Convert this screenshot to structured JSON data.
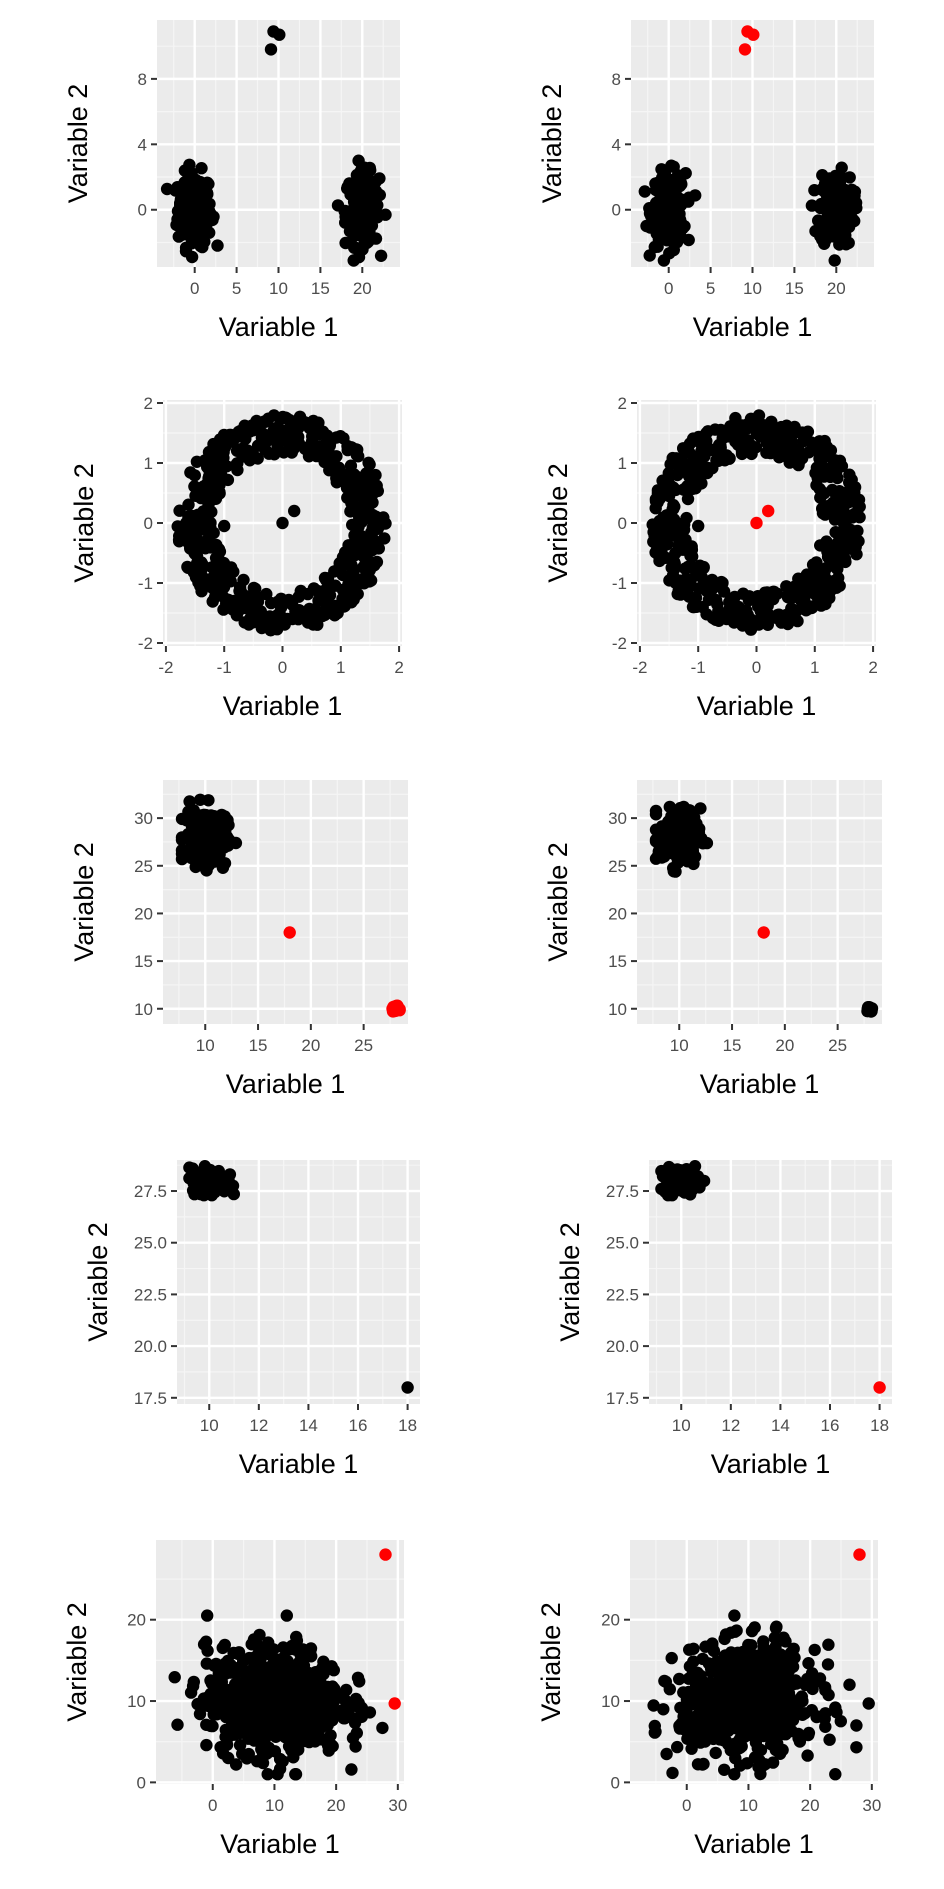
{
  "colors": {
    "panel_bg": "#ebebeb",
    "grid_major": "#ffffff",
    "grid_minor": "#f5f5f5",
    "inlier": "#000000",
    "outlier": "#ff0000"
  },
  "chart_data": [
    {
      "type": "scatter",
      "xlabel": "Variable 1",
      "ylabel": "Variable 2",
      "xlim": [
        -4.5,
        24.5
      ],
      "ylim": [
        -3.5,
        11.6
      ],
      "xticks": [
        0,
        5,
        10,
        15,
        20
      ],
      "xtick_labels": [
        "0",
        "5",
        "10",
        "15",
        "20"
      ],
      "yticks": [
        0,
        4,
        8
      ],
      "ytick_labels": [
        "0",
        "4",
        "8"
      ],
      "clusters": [
        {
          "kind": "cloud",
          "cx": 0,
          "cy": 0,
          "sx": 1.0,
          "sy": 1.1,
          "xr": [
            -3.3,
            3.2
          ],
          "yr": [
            -3.1,
            3.0
          ],
          "n": 200,
          "color": "inlier"
        },
        {
          "kind": "cloud",
          "cx": 20,
          "cy": 0,
          "sx": 1.0,
          "sy": 1.1,
          "xr": [
            16.9,
            23.0
          ],
          "yr": [
            -3.1,
            3.0
          ],
          "n": 200,
          "color": "inlier"
        }
      ],
      "points": [
        {
          "x": 9.4,
          "y": 10.9,
          "color": "inlier"
        },
        {
          "x": 10.1,
          "y": 10.7,
          "color": "inlier"
        },
        {
          "x": 9.1,
          "y": 9.8,
          "color": "inlier"
        }
      ]
    },
    {
      "type": "scatter",
      "xlabel": "Variable 1",
      "ylabel": "Variable 2",
      "xlim": [
        -4.5,
        24.5
      ],
      "ylim": [
        -3.5,
        11.6
      ],
      "xticks": [
        0,
        5,
        10,
        15,
        20
      ],
      "xtick_labels": [
        "0",
        "5",
        "10",
        "15",
        "20"
      ],
      "yticks": [
        0,
        4,
        8
      ],
      "ytick_labels": [
        "0",
        "4",
        "8"
      ],
      "clusters": [
        {
          "kind": "cloud",
          "cx": 0,
          "cy": 0,
          "sx": 1.0,
          "sy": 1.1,
          "xr": [
            -3.3,
            3.2
          ],
          "yr": [
            -3.1,
            3.0
          ],
          "n": 200,
          "color": "inlier"
        },
        {
          "kind": "cloud",
          "cx": 20,
          "cy": 0,
          "sx": 1.0,
          "sy": 1.1,
          "xr": [
            16.9,
            23.0
          ],
          "yr": [
            -3.1,
            3.0
          ],
          "n": 200,
          "color": "inlier"
        }
      ],
      "points": [
        {
          "x": 9.4,
          "y": 10.9,
          "color": "outlier"
        },
        {
          "x": 10.1,
          "y": 10.7,
          "color": "outlier"
        },
        {
          "x": 9.1,
          "y": 9.8,
          "color": "outlier"
        }
      ]
    },
    {
      "type": "scatter",
      "xlabel": "Variable 1",
      "ylabel": "Variable 2",
      "xlim": [
        -2.05,
        2.05
      ],
      "ylim": [
        -2.05,
        2.05
      ],
      "xticks": [
        -2,
        -1,
        0,
        1,
        2
      ],
      "xtick_labels": [
        "-2",
        "-1",
        "0",
        "1",
        "2"
      ],
      "yticks": [
        -2,
        -1,
        0,
        1,
        2
      ],
      "ytick_labels": [
        "-2",
        "-1",
        "0",
        "1",
        "2"
      ],
      "clusters": [
        {
          "kind": "ring",
          "cx": 0,
          "cy": 0,
          "r_in": 1.15,
          "r_out": 1.8,
          "n": 520,
          "color": "inlier"
        }
      ],
      "points": [
        {
          "x": 0.0,
          "y": 0.0,
          "color": "inlier"
        },
        {
          "x": 0.2,
          "y": 0.2,
          "color": "inlier"
        },
        {
          "x": 1.05,
          "y": 0.75,
          "color": "inlier"
        },
        {
          "x": 1.2,
          "y": -0.75,
          "color": "inlier"
        },
        {
          "x": -1.0,
          "y": -0.05,
          "color": "inlier"
        }
      ]
    },
    {
      "type": "scatter",
      "xlabel": "Variable 1",
      "ylabel": "Variable 2",
      "xlim": [
        -2.05,
        2.05
      ],
      "ylim": [
        -2.05,
        2.05
      ],
      "xticks": [
        -2,
        -1,
        0,
        1,
        2
      ],
      "xtick_labels": [
        "-2",
        "-1",
        "0",
        "1",
        "2"
      ],
      "yticks": [
        -2,
        -1,
        0,
        1,
        2
      ],
      "ytick_labels": [
        "-2",
        "-1",
        "0",
        "1",
        "2"
      ],
      "clusters": [
        {
          "kind": "ring",
          "cx": 0,
          "cy": 0,
          "r_in": 1.15,
          "r_out": 1.8,
          "n": 520,
          "color": "inlier"
        }
      ],
      "points": [
        {
          "x": 0.0,
          "y": 0.0,
          "color": "outlier"
        },
        {
          "x": 0.2,
          "y": 0.2,
          "color": "outlier"
        },
        {
          "x": 1.05,
          "y": 0.75,
          "color": "inlier"
        },
        {
          "x": 1.2,
          "y": -0.75,
          "color": "inlier"
        },
        {
          "x": -1.0,
          "y": -0.05,
          "color": "inlier"
        }
      ]
    },
    {
      "type": "scatter",
      "xlabel": "Variable 1",
      "ylabel": "Variable 2",
      "xlim": [
        6.0,
        29.2
      ],
      "ylim": [
        8.4,
        34.0
      ],
      "xticks": [
        10,
        15,
        20,
        25
      ],
      "xtick_labels": [
        "10",
        "15",
        "20",
        "25"
      ],
      "yticks": [
        10,
        15,
        20,
        25,
        30
      ],
      "ytick_labels": [
        "10",
        "15",
        "20",
        "25",
        "30"
      ],
      "clusters": [
        {
          "kind": "cloud",
          "cx": 10,
          "cy": 28,
          "sx": 1.0,
          "sy": 1.5,
          "xr": [
            7.8,
            12.9
          ],
          "yr": [
            23.8,
            33.2
          ],
          "n": 180,
          "color": "inlier"
        },
        {
          "kind": "cloud",
          "cx": 28,
          "cy": 10,
          "sx": 0.15,
          "sy": 0.15,
          "xr": [
            27.6,
            28.4
          ],
          "yr": [
            9.6,
            10.4
          ],
          "n": 30,
          "color": "outlier"
        }
      ],
      "points": [
        {
          "x": 18,
          "y": 18,
          "color": "outlier"
        }
      ]
    },
    {
      "type": "scatter",
      "xlabel": "Variable 1",
      "ylabel": "Variable 2",
      "xlim": [
        6.0,
        29.2
      ],
      "ylim": [
        8.4,
        34.0
      ],
      "xticks": [
        10,
        15,
        20,
        25
      ],
      "xtick_labels": [
        "10",
        "15",
        "20",
        "25"
      ],
      "yticks": [
        10,
        15,
        20,
        25,
        30
      ],
      "ytick_labels": [
        "10",
        "15",
        "20",
        "25",
        "30"
      ],
      "clusters": [
        {
          "kind": "cloud",
          "cx": 10,
          "cy": 28,
          "sx": 1.0,
          "sy": 1.5,
          "xr": [
            7.8,
            12.9
          ],
          "yr": [
            23.8,
            33.2
          ],
          "n": 180,
          "color": "inlier"
        },
        {
          "kind": "cloud",
          "cx": 28,
          "cy": 10,
          "sx": 0.15,
          "sy": 0.15,
          "xr": [
            27.6,
            28.4
          ],
          "yr": [
            9.6,
            10.4
          ],
          "n": 30,
          "color": "inlier"
        }
      ],
      "points": [
        {
          "x": 18,
          "y": 18,
          "color": "outlier"
        }
      ]
    },
    {
      "type": "scatter",
      "xlabel": "Variable 1",
      "ylabel": "Variable 2",
      "xlim": [
        8.7,
        18.5
      ],
      "ylim": [
        17.2,
        29.0
      ],
      "xticks": [
        10,
        12,
        14,
        16,
        18
      ],
      "xtick_labels": [
        "10",
        "12",
        "14",
        "16",
        "18"
      ],
      "yticks": [
        17.5,
        20.0,
        22.5,
        25.0,
        27.5
      ],
      "ytick_labels": [
        "17.5",
        "20.0",
        "22.5",
        "25.0",
        "27.5"
      ],
      "clusters": [
        {
          "kind": "cloud",
          "cx": 10.0,
          "cy": 28.0,
          "sx": 0.35,
          "sy": 0.3,
          "xr": [
            9.2,
            11.0
          ],
          "yr": [
            27.3,
            28.7
          ],
          "n": 150,
          "color": "inlier"
        }
      ],
      "points": [
        {
          "x": 18,
          "y": 18,
          "color": "inlier"
        }
      ]
    },
    {
      "type": "scatter",
      "xlabel": "Variable 1",
      "ylabel": "Variable 2",
      "xlim": [
        8.7,
        18.5
      ],
      "ylim": [
        17.2,
        29.0
      ],
      "xticks": [
        10,
        12,
        14,
        16,
        18
      ],
      "xtick_labels": [
        "10",
        "12",
        "14",
        "16",
        "18"
      ],
      "yticks": [
        17.5,
        20.0,
        22.5,
        25.0,
        27.5
      ],
      "ytick_labels": [
        "17.5",
        "20.0",
        "22.5",
        "25.0",
        "27.5"
      ],
      "clusters": [
        {
          "kind": "cloud",
          "cx": 10.0,
          "cy": 28.0,
          "sx": 0.35,
          "sy": 0.3,
          "xr": [
            9.2,
            11.0
          ],
          "yr": [
            27.3,
            28.7
          ],
          "n": 150,
          "color": "inlier"
        }
      ],
      "points": [
        {
          "x": 18,
          "y": 18,
          "color": "outlier"
        }
      ]
    },
    {
      "type": "scatter",
      "xlabel": "Variable 1",
      "ylabel": "Variable 2",
      "xlim": [
        -9.2,
        31.0
      ],
      "ylim": [
        -0.2,
        29.8
      ],
      "xticks": [
        0,
        10,
        20,
        30
      ],
      "xtick_labels": [
        "0",
        "10",
        "20",
        "30"
      ],
      "yticks": [
        0,
        10,
        20
      ],
      "ytick_labels": [
        "0",
        "10",
        "20"
      ],
      "clusters": [
        {
          "kind": "cloud",
          "cx": 10,
          "cy": 10,
          "sx": 5.5,
          "sy": 3.3,
          "xr": [
            -7.5,
            27.5
          ],
          "yr": [
            1.0,
            20.5
          ],
          "n": 700,
          "color": "inlier"
        }
      ],
      "points": [
        {
          "x": 28,
          "y": 28,
          "color": "outlier"
        },
        {
          "x": 29.5,
          "y": 9.7,
          "color": "outlier"
        }
      ]
    },
    {
      "type": "scatter",
      "xlabel": "Variable 1",
      "ylabel": "Variable 2",
      "xlim": [
        -9.2,
        31.0
      ],
      "ylim": [
        -0.2,
        29.8
      ],
      "xticks": [
        0,
        10,
        20,
        30
      ],
      "xtick_labels": [
        "0",
        "10",
        "20",
        "30"
      ],
      "yticks": [
        0,
        10,
        20
      ],
      "ytick_labels": [
        "0",
        "10",
        "20"
      ],
      "clusters": [
        {
          "kind": "cloud",
          "cx": 10,
          "cy": 10,
          "sx": 5.5,
          "sy": 3.3,
          "xr": [
            -7.5,
            27.5
          ],
          "yr": [
            1.0,
            20.5
          ],
          "n": 700,
          "color": "inlier"
        }
      ],
      "points": [
        {
          "x": 28,
          "y": 28,
          "color": "outlier"
        },
        {
          "x": 29.5,
          "y": 9.7,
          "color": "inlier"
        }
      ]
    }
  ]
}
